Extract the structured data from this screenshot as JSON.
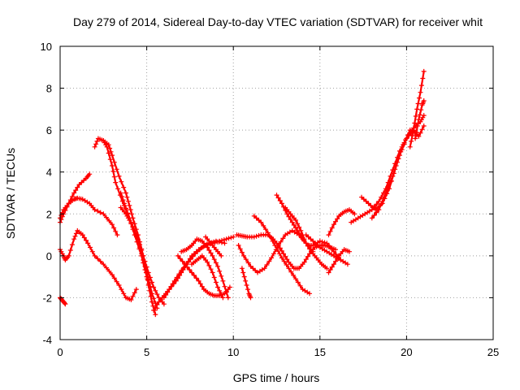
{
  "chart_data": {
    "type": "scatter",
    "title": "Day 279 of 2014, Sidereal Day-to-day VTEC variation (SDTVAR) for receiver whit",
    "xlabel": "GPS time / hours",
    "ylabel": "SDTVAR / TECUs",
    "xlim": [
      0,
      25
    ],
    "ylim": [
      -4,
      10
    ],
    "xticks": [
      "0",
      "5",
      "10",
      "15",
      "20",
      "25"
    ],
    "yticks": [
      "-4",
      "-2",
      "0",
      "2",
      "4",
      "6",
      "8",
      "10"
    ],
    "grid": true,
    "marker": "+",
    "color": "#ff0000",
    "series": [
      {
        "name": "s1",
        "x": [
          0,
          0.2,
          0.5,
          0.8,
          1.1,
          1.5,
          1.7
        ],
        "y": [
          1.6,
          2.0,
          2.5,
          3.0,
          3.4,
          3.7,
          3.9
        ]
      },
      {
        "name": "s2",
        "x": [
          0,
          0.2,
          0.5,
          0.8,
          1.0,
          1.3,
          1.7,
          2.0,
          2.5,
          3.0,
          3.3
        ],
        "y": [
          1.8,
          2.2,
          2.5,
          2.7,
          2.75,
          2.7,
          2.5,
          2.2,
          2.0,
          1.5,
          1.0
        ]
      },
      {
        "name": "s3",
        "x": [
          0,
          0.2,
          0.3,
          0.5,
          0.8,
          1.0,
          1.3,
          1.6,
          2.0,
          2.5,
          3.0,
          3.4,
          3.8,
          4.1,
          4.4
        ],
        "y": [
          0.3,
          0.0,
          -0.2,
          0.0,
          0.8,
          1.2,
          1.0,
          0.6,
          0.0,
          -0.4,
          -0.9,
          -1.4,
          -2.0,
          -2.1,
          -1.6
        ]
      },
      {
        "name": "s4",
        "x": [
          0,
          0.1,
          0.2,
          0.3
        ],
        "y": [
          -2.0,
          -2.1,
          -2.2,
          -2.3
        ]
      },
      {
        "name": "s5",
        "x": [
          2.0,
          2.2,
          2.5,
          2.7,
          3.0,
          3.2,
          3.6,
          3.9,
          4.2,
          4.5,
          4.8,
          5.1,
          5.4,
          5.7,
          6.0
        ],
        "y": [
          5.2,
          5.6,
          5.5,
          5.2,
          4.3,
          3.5,
          2.6,
          2.0,
          1.4,
          0.8,
          0.0,
          -0.8,
          -1.5,
          -2.0,
          -2.3
        ]
      },
      {
        "name": "s6",
        "x": [
          2.5,
          2.8,
          3.0,
          3.4,
          3.8,
          4.0,
          4.2,
          4.5,
          4.8,
          5.0,
          5.3,
          5.6
        ],
        "y": [
          5.5,
          5.3,
          4.8,
          3.8,
          3.0,
          2.4,
          1.8,
          1.0,
          0.0,
          -0.8,
          -1.8,
          -2.5
        ]
      },
      {
        "name": "s7",
        "x": [
          3.5,
          3.8,
          4.0,
          4.3,
          4.6,
          4.9,
          5.1,
          5.3,
          5.5
        ],
        "y": [
          2.3,
          2.0,
          1.7,
          1.2,
          0.4,
          -0.5,
          -1.4,
          -2.2,
          -2.8
        ]
      },
      {
        "name": "s8",
        "x": [
          3.5,
          3.7,
          4.0,
          4.3,
          4.7,
          5.0,
          5.2
        ],
        "y": [
          3.0,
          2.5,
          1.8,
          1.0,
          0.0,
          -1.0,
          -1.5
        ]
      },
      {
        "name": "s9",
        "x": [
          5.4,
          5.7,
          6.0,
          6.3,
          6.7,
          7.0,
          7.3,
          7.6,
          8.0,
          8.4,
          8.8,
          9.2,
          9.6,
          10.0
        ],
        "y": [
          -2.6,
          -2.2,
          -1.9,
          -1.6,
          -1.2,
          -0.8,
          -0.4,
          0.0,
          0.3,
          0.5,
          0.6,
          0.7,
          0.8,
          0.9
        ]
      },
      {
        "name": "s10",
        "x": [
          6.0,
          6.3,
          6.6,
          7.0,
          7.4,
          7.8,
          8.2,
          8.6,
          9.0,
          9.5
        ],
        "y": [
          -2.0,
          -1.6,
          -1.2,
          -0.7,
          -0.3,
          0.1,
          0.4,
          0.6,
          0.7,
          0.6
        ]
      },
      {
        "name": "s11",
        "x": [
          6.8,
          7.2,
          7.6,
          8.0,
          8.3,
          8.6,
          8.9,
          9.2,
          9.5,
          9.8
        ],
        "y": [
          0.0,
          -0.4,
          -0.8,
          -1.2,
          -1.6,
          -1.8,
          -1.9,
          -1.9,
          -1.8,
          -1.5
        ]
      },
      {
        "name": "s12",
        "x": [
          7.0,
          7.3,
          7.6,
          7.9,
          8.2,
          8.5,
          8.8,
          9.1,
          9.4,
          9.7
        ],
        "y": [
          0.2,
          0.3,
          0.5,
          0.8,
          0.7,
          0.4,
          0.0,
          -0.5,
          -1.2,
          -2.0
        ]
      },
      {
        "name": "s13",
        "x": [
          7.6,
          7.9,
          8.2,
          8.5,
          8.8,
          9.1,
          9.4
        ],
        "y": [
          -0.4,
          -0.2,
          0.0,
          -0.3,
          -0.8,
          -1.5,
          -2.0
        ]
      },
      {
        "name": "s14",
        "x": [
          8.4,
          8.7,
          9.0,
          9.3
        ],
        "y": [
          0.9,
          0.6,
          0.3,
          0.0
        ]
      },
      {
        "name": "s15",
        "x": [
          10.2,
          10.5,
          10.8,
          11.2,
          11.6,
          12.0,
          12.3,
          12.6,
          12.9,
          13.2,
          13.5,
          13.8,
          14.1,
          14.4,
          14.7,
          15.0,
          15.3,
          15.6,
          15.9
        ],
        "y": [
          1.0,
          0.95,
          0.9,
          0.9,
          1.0,
          1.0,
          0.8,
          0.5,
          0.1,
          -0.3,
          -0.6,
          -0.6,
          -0.3,
          0.1,
          0.4,
          0.5,
          0.5,
          0.4,
          0.3
        ]
      },
      {
        "name": "s16",
        "x": [
          10.3,
          10.6,
          11.0,
          11.4,
          11.8,
          12.2,
          12.6,
          13.0,
          13.4,
          13.8,
          14.2,
          14.6
        ],
        "y": [
          0.5,
          0.0,
          -0.5,
          -0.8,
          -0.6,
          -0.1,
          0.5,
          1.0,
          1.2,
          1.0,
          0.6,
          0.2
        ]
      },
      {
        "name": "s17",
        "x": [
          10.5,
          10.7,
          10.9,
          11.0
        ],
        "y": [
          -0.6,
          -1.2,
          -1.8,
          -2.0
        ]
      },
      {
        "name": "s18",
        "x": [
          11.2,
          11.6,
          12.0,
          12.4,
          12.8,
          13.2,
          13.6,
          14.0,
          14.4
        ],
        "y": [
          1.9,
          1.6,
          1.1,
          0.5,
          -0.1,
          -0.6,
          -1.1,
          -1.6,
          -1.8
        ]
      },
      {
        "name": "s19",
        "x": [
          12.5,
          12.8,
          13.1,
          13.4,
          13.7,
          14.0,
          14.3,
          14.6,
          15.0,
          15.4,
          15.8,
          16.2
        ],
        "y": [
          2.9,
          2.5,
          2.0,
          1.6,
          1.2,
          0.8,
          0.5,
          0.5,
          0.7,
          0.6,
          0.2,
          -0.2
        ]
      },
      {
        "name": "s20",
        "x": [
          13.0,
          13.3,
          13.6,
          13.9,
          14.2,
          14.5,
          14.8,
          15.1,
          15.4
        ],
        "y": [
          2.3,
          2.0,
          1.7,
          1.2,
          0.6,
          0.2,
          -0.1,
          -0.4,
          -0.6
        ]
      },
      {
        "name": "s21",
        "x": [
          14.2,
          14.6,
          15.0,
          15.4,
          15.8,
          16.2,
          16.6
        ],
        "y": [
          1.0,
          0.7,
          0.4,
          0.2,
          0.0,
          -0.2,
          -0.4
        ]
      },
      {
        "name": "s22",
        "x": [
          15.5,
          15.8,
          16.1,
          16.4,
          16.7
        ],
        "y": [
          -0.8,
          -0.4,
          0.0,
          0.3,
          0.2
        ]
      },
      {
        "name": "s23",
        "x": [
          15.5,
          15.8,
          16.1,
          16.4,
          16.7,
          17.0
        ],
        "y": [
          1.0,
          1.5,
          1.9,
          2.1,
          2.2,
          2.0
        ]
      },
      {
        "name": "s24",
        "x": [
          16.8,
          17.2,
          17.6,
          18.0,
          18.4,
          18.8,
          19.2,
          19.6,
          20.0,
          20.4,
          20.8,
          21.0
        ],
        "y": [
          1.6,
          1.8,
          2.0,
          2.2,
          2.6,
          3.2,
          4.1,
          5.0,
          5.6,
          6.1,
          6.4,
          6.7
        ]
      },
      {
        "name": "s25",
        "x": [
          17.4,
          17.8,
          18.2,
          18.6,
          19.0,
          19.4,
          19.8,
          20.2,
          20.6
        ],
        "y": [
          2.8,
          2.5,
          2.2,
          2.5,
          3.2,
          4.3,
          5.3,
          6.0,
          5.8
        ]
      },
      {
        "name": "s26",
        "x": [
          18.0,
          18.4,
          18.8,
          19.2,
          19.6,
          20.0,
          20.4,
          20.7,
          21.0
        ],
        "y": [
          1.8,
          2.2,
          3.0,
          3.8,
          4.8,
          5.6,
          6.0,
          5.7,
          6.2
        ]
      },
      {
        "name": "s27",
        "x": [
          20.2,
          20.4,
          20.6,
          20.8,
          21.0
        ],
        "y": [
          5.2,
          6.0,
          7.0,
          7.8,
          8.8
        ]
      },
      {
        "name": "s28",
        "x": [
          20.5,
          20.7,
          20.9,
          21.0
        ],
        "y": [
          5.6,
          6.5,
          7.2,
          7.4
        ]
      }
    ]
  }
}
